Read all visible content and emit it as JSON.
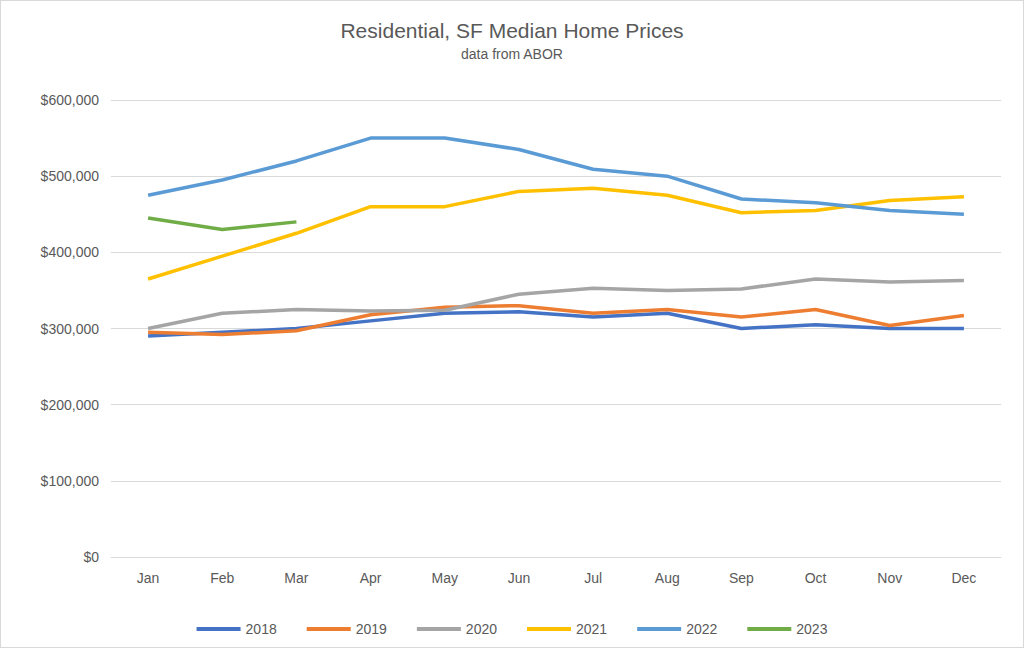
{
  "chart_data": {
    "type": "line",
    "title": "Residential, SF Median Home Prices",
    "subtitle": "data from ABOR",
    "categories": [
      "Jan",
      "Feb",
      "Mar",
      "Apr",
      "May",
      "Jun",
      "Jul",
      "Aug",
      "Sep",
      "Oct",
      "Nov",
      "Dec"
    ],
    "series": [
      {
        "name": "2018",
        "color": "#4472c4",
        "values": [
          290000,
          295000,
          300000,
          310000,
          320000,
          322000,
          315000,
          320000,
          300000,
          305000,
          300000,
          300000
        ]
      },
      {
        "name": "2019",
        "color": "#ed7d31",
        "values": [
          295000,
          292000,
          297000,
          318000,
          328000,
          330000,
          320000,
          325000,
          315000,
          325000,
          304000,
          317000
        ]
      },
      {
        "name": "2020",
        "color": "#a5a5a5",
        "values": [
          300000,
          320000,
          325000,
          323000,
          324000,
          345000,
          353000,
          350000,
          352000,
          365000,
          361000,
          363000
        ]
      },
      {
        "name": "2021",
        "color": "#ffc000",
        "values": [
          365000,
          395000,
          425000,
          460000,
          460000,
          480000,
          484000,
          475000,
          452000,
          455000,
          468000,
          473000
        ]
      },
      {
        "name": "2022",
        "color": "#5b9bd5",
        "values": [
          475000,
          495000,
          520000,
          550000,
          550000,
          535000,
          509000,
          500000,
          470000,
          465000,
          455000,
          450000
        ]
      },
      {
        "name": "2023",
        "color": "#70ad47",
        "values": [
          445000,
          430000,
          440000,
          null,
          null,
          null,
          null,
          null,
          null,
          null,
          null,
          null
        ]
      }
    ],
    "ylim": [
      0,
      600000
    ],
    "yticks": [
      {
        "value": 0,
        "label": "$0"
      },
      {
        "value": 100000,
        "label": "$100,000"
      },
      {
        "value": 200000,
        "label": "$200,000"
      },
      {
        "value": 300000,
        "label": "$300,000"
      },
      {
        "value": 400000,
        "label": "$400,000"
      },
      {
        "value": 500000,
        "label": "$500,000"
      },
      {
        "value": 600000,
        "label": "$600,000"
      }
    ],
    "grid": true,
    "legend": "bottom"
  }
}
